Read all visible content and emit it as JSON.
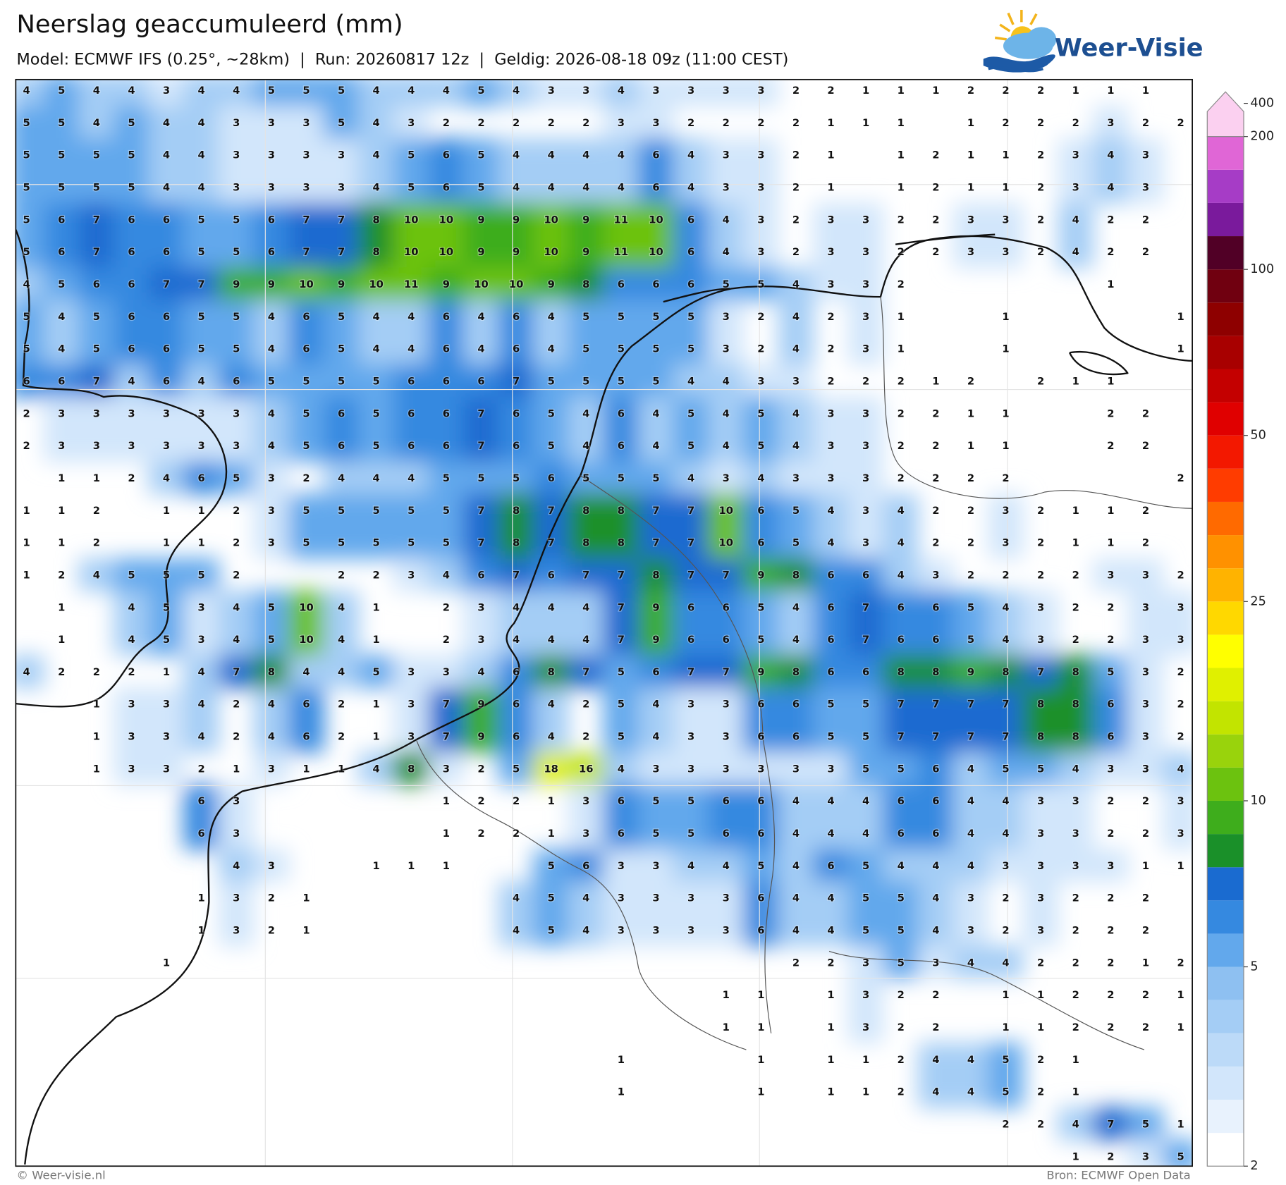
{
  "header": {
    "title": "Neerslag geaccumuleerd (mm)",
    "subtitle": "Model: ECMWF IFS (0.25°, ~28km)  |  Run: 20260817 12z  |  Geldig: 2026-08-18 09z (11:00 CEST)",
    "logo": "Weer-Visie"
  },
  "footer": {
    "left": "© Weer-visie.nl",
    "right": "Bron: ECMWF Open Data"
  },
  "colorbar": {
    "ticks": [
      2,
      5,
      10,
      25,
      50,
      100,
      200,
      400
    ],
    "colors": [
      "#ffffff",
      "#e8f2fd",
      "#d2e6fb",
      "#bcdaf8",
      "#a4cdf5",
      "#8ec0f1",
      "#62a8ec",
      "#3589e0",
      "#1a6bd0",
      "#1a9029",
      "#3ead1c",
      "#6cc20f",
      "#99d30c",
      "#c2e400",
      "#e0f000",
      "#ffff00",
      "#ffd800",
      "#ffb300",
      "#ff9100",
      "#ff6a00",
      "#ff3c00",
      "#f31800",
      "#e00000",
      "#c40000",
      "#a80000",
      "#8e0000",
      "#700010",
      "#510026",
      "#7a1a9c",
      "#a63cc6",
      "#e066d6",
      "#fbd0f0"
    ]
  },
  "grid": {
    "values": [
      [
        4,
        5,
        4,
        4,
        3,
        4,
        4,
        5,
        5,
        5,
        4,
        4,
        4,
        5,
        4,
        3,
        3,
        4,
        3,
        3,
        3,
        3,
        2,
        2,
        1,
        1,
        1,
        2,
        2,
        2,
        1,
        1,
        1,
        null
      ],
      [
        5,
        5,
        4,
        5,
        4,
        4,
        3,
        3,
        3,
        5,
        4,
        3,
        2,
        2,
        2,
        2,
        2,
        3,
        3,
        2,
        2,
        2,
        2,
        1,
        1,
        1,
        null,
        1,
        2,
        2,
        2,
        3,
        2,
        2
      ],
      [
        5,
        5,
        5,
        5,
        4,
        4,
        3,
        3,
        3,
        3,
        4,
        5,
        6,
        5,
        4,
        4,
        4,
        4,
        6,
        4,
        3,
        3,
        2,
        1,
        null,
        1,
        2,
        1,
        1,
        2,
        3,
        4,
        3,
        null
      ],
      [
        5,
        5,
        5,
        5,
        4,
        4,
        3,
        3,
        3,
        3,
        4,
        5,
        6,
        5,
        4,
        4,
        4,
        4,
        6,
        4,
        3,
        3,
        2,
        1,
        null,
        1,
        2,
        1,
        1,
        2,
        3,
        4,
        3,
        null
      ],
      [
        5,
        6,
        7,
        6,
        6,
        5,
        5,
        6,
        7,
        7,
        8,
        10,
        10,
        9,
        9,
        10,
        9,
        11,
        10,
        6,
        4,
        3,
        2,
        3,
        3,
        2,
        2,
        3,
        3,
        2,
        4,
        2,
        2,
        null
      ],
      [
        5,
        6,
        7,
        6,
        6,
        5,
        5,
        6,
        7,
        7,
        8,
        10,
        10,
        9,
        9,
        10,
        9,
        11,
        10,
        6,
        4,
        3,
        2,
        3,
        3,
        2,
        2,
        3,
        3,
        2,
        4,
        2,
        2,
        null
      ],
      [
        4,
        5,
        6,
        6,
        7,
        7,
        9,
        9,
        10,
        9,
        10,
        11,
        9,
        10,
        10,
        9,
        8,
        6,
        6,
        6,
        5,
        5,
        4,
        3,
        3,
        2,
        null,
        null,
        null,
        null,
        null,
        1,
        null,
        null
      ],
      [
        5,
        4,
        5,
        6,
        6,
        5,
        5,
        4,
        6,
        5,
        4,
        4,
        6,
        4,
        6,
        4,
        5,
        5,
        5,
        5,
        3,
        2,
        4,
        2,
        3,
        1,
        null,
        null,
        1,
        null,
        null,
        null,
        null,
        1
      ],
      [
        5,
        4,
        5,
        6,
        6,
        5,
        5,
        4,
        6,
        5,
        4,
        4,
        6,
        4,
        6,
        4,
        5,
        5,
        5,
        5,
        3,
        2,
        4,
        2,
        3,
        1,
        null,
        null,
        1,
        null,
        null,
        null,
        null,
        1
      ],
      [
        6,
        6,
        7,
        4,
        6,
        4,
        6,
        5,
        5,
        5,
        5,
        6,
        6,
        6,
        7,
        5,
        5,
        5,
        5,
        4,
        4,
        3,
        3,
        2,
        2,
        2,
        1,
        2,
        null,
        2,
        1,
        1,
        null,
        null
      ],
      [
        2,
        3,
        3,
        3,
        3,
        3,
        3,
        4,
        5,
        6,
        5,
        6,
        6,
        7,
        6,
        5,
        4,
        6,
        4,
        5,
        4,
        5,
        4,
        3,
        3,
        2,
        2,
        1,
        1,
        null,
        null,
        2,
        2,
        null
      ],
      [
        2,
        3,
        3,
        3,
        3,
        3,
        3,
        4,
        5,
        6,
        5,
        6,
        6,
        7,
        6,
        5,
        4,
        6,
        4,
        5,
        4,
        5,
        4,
        3,
        3,
        2,
        2,
        1,
        1,
        null,
        null,
        2,
        2,
        null
      ],
      [
        null,
        1,
        1,
        2,
        4,
        6,
        5,
        3,
        2,
        4,
        4,
        4,
        5,
        5,
        5,
        6,
        5,
        5,
        5,
        4,
        3,
        4,
        3,
        3,
        3,
        2,
        2,
        2,
        2,
        null,
        null,
        null,
        null,
        2
      ],
      [
        1,
        1,
        2,
        null,
        1,
        1,
        2,
        3,
        5,
        5,
        5,
        5,
        5,
        7,
        8,
        7,
        8,
        8,
        7,
        7,
        10,
        6,
        5,
        4,
        3,
        4,
        2,
        2,
        3,
        2,
        1,
        1,
        2,
        null
      ],
      [
        1,
        1,
        2,
        null,
        1,
        1,
        2,
        3,
        5,
        5,
        5,
        5,
        5,
        7,
        8,
        7,
        8,
        8,
        7,
        7,
        10,
        6,
        5,
        4,
        3,
        4,
        2,
        2,
        3,
        2,
        1,
        1,
        2,
        null
      ],
      [
        1,
        2,
        4,
        5,
        5,
        5,
        2,
        null,
        null,
        2,
        2,
        3,
        4,
        6,
        7,
        6,
        7,
        7,
        8,
        7,
        7,
        9,
        8,
        6,
        6,
        4,
        3,
        2,
        2,
        2,
        2,
        3,
        3,
        2
      ],
      [
        null,
        1,
        null,
        4,
        5,
        3,
        4,
        5,
        10,
        4,
        1,
        null,
        2,
        3,
        4,
        4,
        4,
        7,
        9,
        6,
        6,
        5,
        4,
        6,
        7,
        6,
        6,
        5,
        4,
        3,
        2,
        2,
        3,
        3
      ],
      [
        null,
        1,
        null,
        4,
        5,
        3,
        4,
        5,
        10,
        4,
        1,
        null,
        2,
        3,
        4,
        4,
        4,
        7,
        9,
        6,
        6,
        5,
        4,
        6,
        7,
        6,
        6,
        5,
        4,
        3,
        2,
        2,
        3,
        3
      ],
      [
        4,
        2,
        2,
        2,
        1,
        4,
        7,
        8,
        4,
        4,
        5,
        3,
        3,
        4,
        6,
        8,
        7,
        5,
        6,
        7,
        7,
        9,
        8,
        6,
        6,
        8,
        8,
        9,
        8,
        7,
        8,
        5,
        3,
        2
      ],
      [
        null,
        null,
        1,
        3,
        3,
        4,
        2,
        4,
        6,
        2,
        1,
        3,
        7,
        9,
        6,
        4,
        2,
        5,
        4,
        3,
        3,
        6,
        6,
        5,
        5,
        7,
        7,
        7,
        7,
        8,
        8,
        6,
        3,
        2
      ],
      [
        null,
        null,
        1,
        3,
        3,
        4,
        2,
        4,
        6,
        2,
        1,
        3,
        7,
        9,
        6,
        4,
        2,
        5,
        4,
        3,
        3,
        6,
        6,
        5,
        5,
        7,
        7,
        7,
        7,
        8,
        8,
        6,
        3,
        2
      ],
      [
        null,
        null,
        1,
        3,
        3,
        2,
        1,
        3,
        1,
        1,
        4,
        8,
        3,
        2,
        5,
        18,
        16,
        4,
        3,
        3,
        3,
        3,
        3,
        3,
        5,
        5,
        6,
        4,
        5,
        5,
        4,
        3,
        3,
        4
      ],
      [
        null,
        null,
        null,
        null,
        null,
        6,
        3,
        null,
        null,
        null,
        null,
        null,
        1,
        2,
        2,
        1,
        3,
        6,
        5,
        5,
        6,
        6,
        4,
        4,
        4,
        6,
        6,
        4,
        4,
        3,
        3,
        2,
        2,
        3
      ],
      [
        null,
        null,
        null,
        null,
        null,
        6,
        3,
        null,
        null,
        null,
        null,
        null,
        1,
        2,
        2,
        1,
        3,
        6,
        5,
        5,
        6,
        6,
        4,
        4,
        4,
        6,
        6,
        4,
        4,
        3,
        3,
        2,
        2,
        3
      ],
      [
        null,
        null,
        null,
        null,
        null,
        null,
        4,
        3,
        null,
        null,
        1,
        1,
        1,
        null,
        null,
        5,
        6,
        3,
        3,
        4,
        4,
        5,
        4,
        6,
        5,
        4,
        4,
        4,
        3,
        3,
        3,
        3,
        1,
        1
      ],
      [
        null,
        null,
        null,
        null,
        null,
        1,
        3,
        2,
        1,
        null,
        null,
        null,
        null,
        null,
        4,
        5,
        4,
        3,
        3,
        3,
        3,
        6,
        4,
        4,
        5,
        5,
        4,
        3,
        2,
        3,
        2,
        2,
        2,
        null
      ],
      [
        null,
        null,
        null,
        null,
        null,
        1,
        3,
        2,
        1,
        null,
        null,
        null,
        null,
        null,
        4,
        5,
        4,
        3,
        3,
        3,
        3,
        6,
        4,
        4,
        5,
        5,
        4,
        3,
        2,
        3,
        2,
        2,
        2,
        null
      ],
      [
        null,
        null,
        null,
        null,
        1,
        null,
        null,
        null,
        null,
        null,
        null,
        null,
        null,
        null,
        null,
        null,
        null,
        null,
        null,
        null,
        null,
        null,
        2,
        2,
        3,
        5,
        3,
        4,
        4,
        2,
        2,
        2,
        1,
        2
      ],
      [
        null,
        null,
        null,
        null,
        null,
        null,
        null,
        null,
        null,
        null,
        null,
        null,
        null,
        null,
        null,
        null,
        null,
        null,
        null,
        null,
        1,
        1,
        null,
        1,
        3,
        2,
        2,
        null,
        1,
        1,
        2,
        2,
        2,
        1
      ],
      [
        null,
        null,
        null,
        null,
        null,
        null,
        null,
        null,
        null,
        null,
        null,
        null,
        null,
        null,
        null,
        null,
        null,
        null,
        null,
        null,
        1,
        1,
        null,
        1,
        3,
        2,
        2,
        null,
        1,
        1,
        2,
        2,
        2,
        1
      ],
      [
        null,
        null,
        null,
        null,
        null,
        null,
        null,
        null,
        null,
        null,
        null,
        null,
        null,
        null,
        null,
        null,
        null,
        1,
        null,
        null,
        null,
        1,
        null,
        1,
        1,
        2,
        4,
        4,
        5,
        2,
        1,
        null,
        null,
        null
      ],
      [
        null,
        null,
        null,
        null,
        null,
        null,
        null,
        null,
        null,
        null,
        null,
        null,
        null,
        null,
        null,
        null,
        null,
        1,
        null,
        null,
        null,
        1,
        null,
        1,
        1,
        2,
        4,
        4,
        5,
        2,
        1,
        null,
        null,
        null
      ],
      [
        null,
        null,
        null,
        null,
        null,
        null,
        null,
        null,
        null,
        null,
        null,
        null,
        null,
        null,
        null,
        null,
        null,
        null,
        null,
        null,
        null,
        null,
        null,
        null,
        null,
        null,
        null,
        null,
        2,
        2,
        4,
        7,
        5,
        1
      ],
      [
        null,
        null,
        null,
        null,
        null,
        null,
        null,
        null,
        null,
        null,
        null,
        null,
        null,
        null,
        null,
        null,
        null,
        null,
        null,
        null,
        null,
        null,
        null,
        null,
        null,
        null,
        null,
        null,
        null,
        null,
        1,
        2,
        3,
        5
      ]
    ]
  }
}
